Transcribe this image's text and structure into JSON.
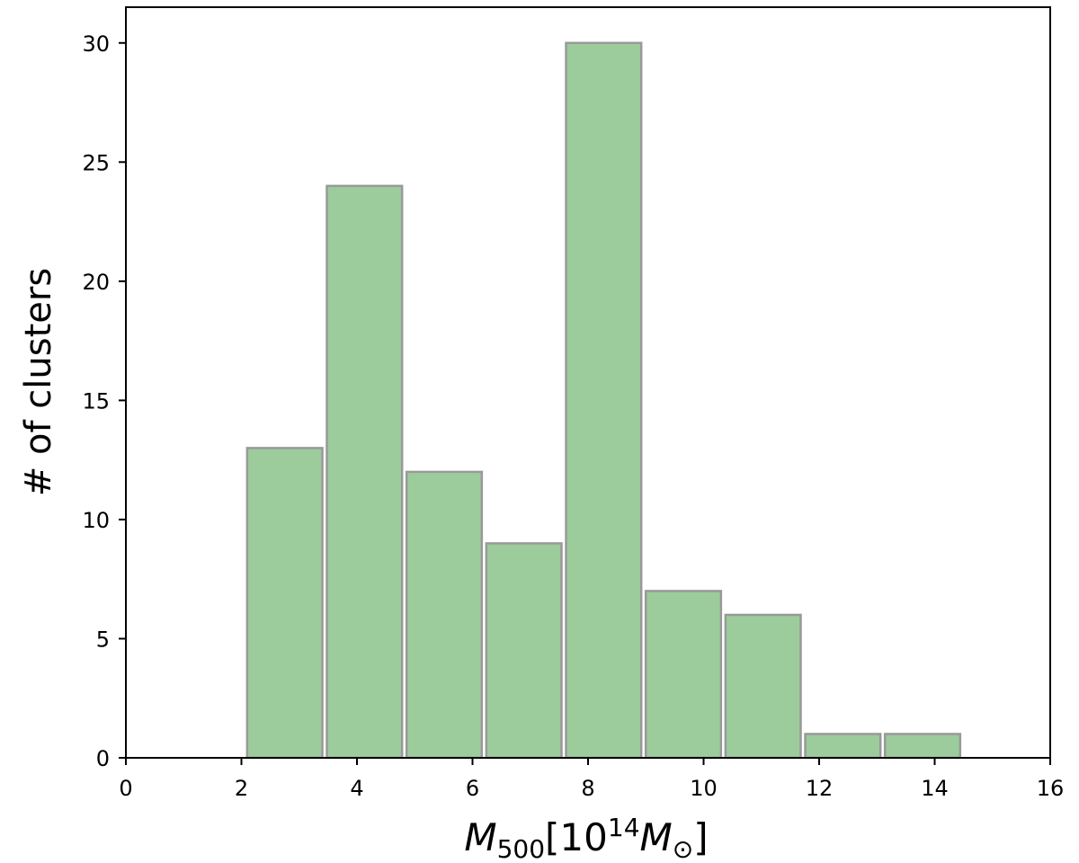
{
  "chart_data": {
    "type": "bar",
    "bins": [
      {
        "x0": 2.06,
        "x1": 3.44,
        "count": 13
      },
      {
        "x0": 3.44,
        "x1": 4.82,
        "count": 24
      },
      {
        "x0": 4.82,
        "x1": 6.2,
        "count": 12
      },
      {
        "x0": 6.2,
        "x1": 7.58,
        "count": 9
      },
      {
        "x0": 7.58,
        "x1": 8.96,
        "count": 30
      },
      {
        "x0": 8.96,
        "x1": 10.34,
        "count": 7
      },
      {
        "x0": 10.34,
        "x1": 11.72,
        "count": 6
      },
      {
        "x0": 11.72,
        "x1": 13.1,
        "count": 1
      },
      {
        "x0": 13.1,
        "x1": 14.48,
        "count": 1
      }
    ],
    "xlabel": {
      "main": "M",
      "sub": "500",
      "bracket_open": "[10",
      "exp": "14",
      "main2": "M",
      "sun": "⊙",
      "bracket_close": "]"
    },
    "ylabel": "# of clusters",
    "xlim": [
      0,
      16
    ],
    "ylim": [
      0,
      31.5
    ],
    "xticks": [
      "0",
      "2",
      "4",
      "6",
      "8",
      "10",
      "12",
      "14",
      "16"
    ],
    "yticks": [
      "0",
      "5",
      "10",
      "15",
      "20",
      "25",
      "30"
    ],
    "bar_color": "#9ccc9c",
    "bar_edge_color": "#999999",
    "grid": false,
    "legend": "none"
  }
}
